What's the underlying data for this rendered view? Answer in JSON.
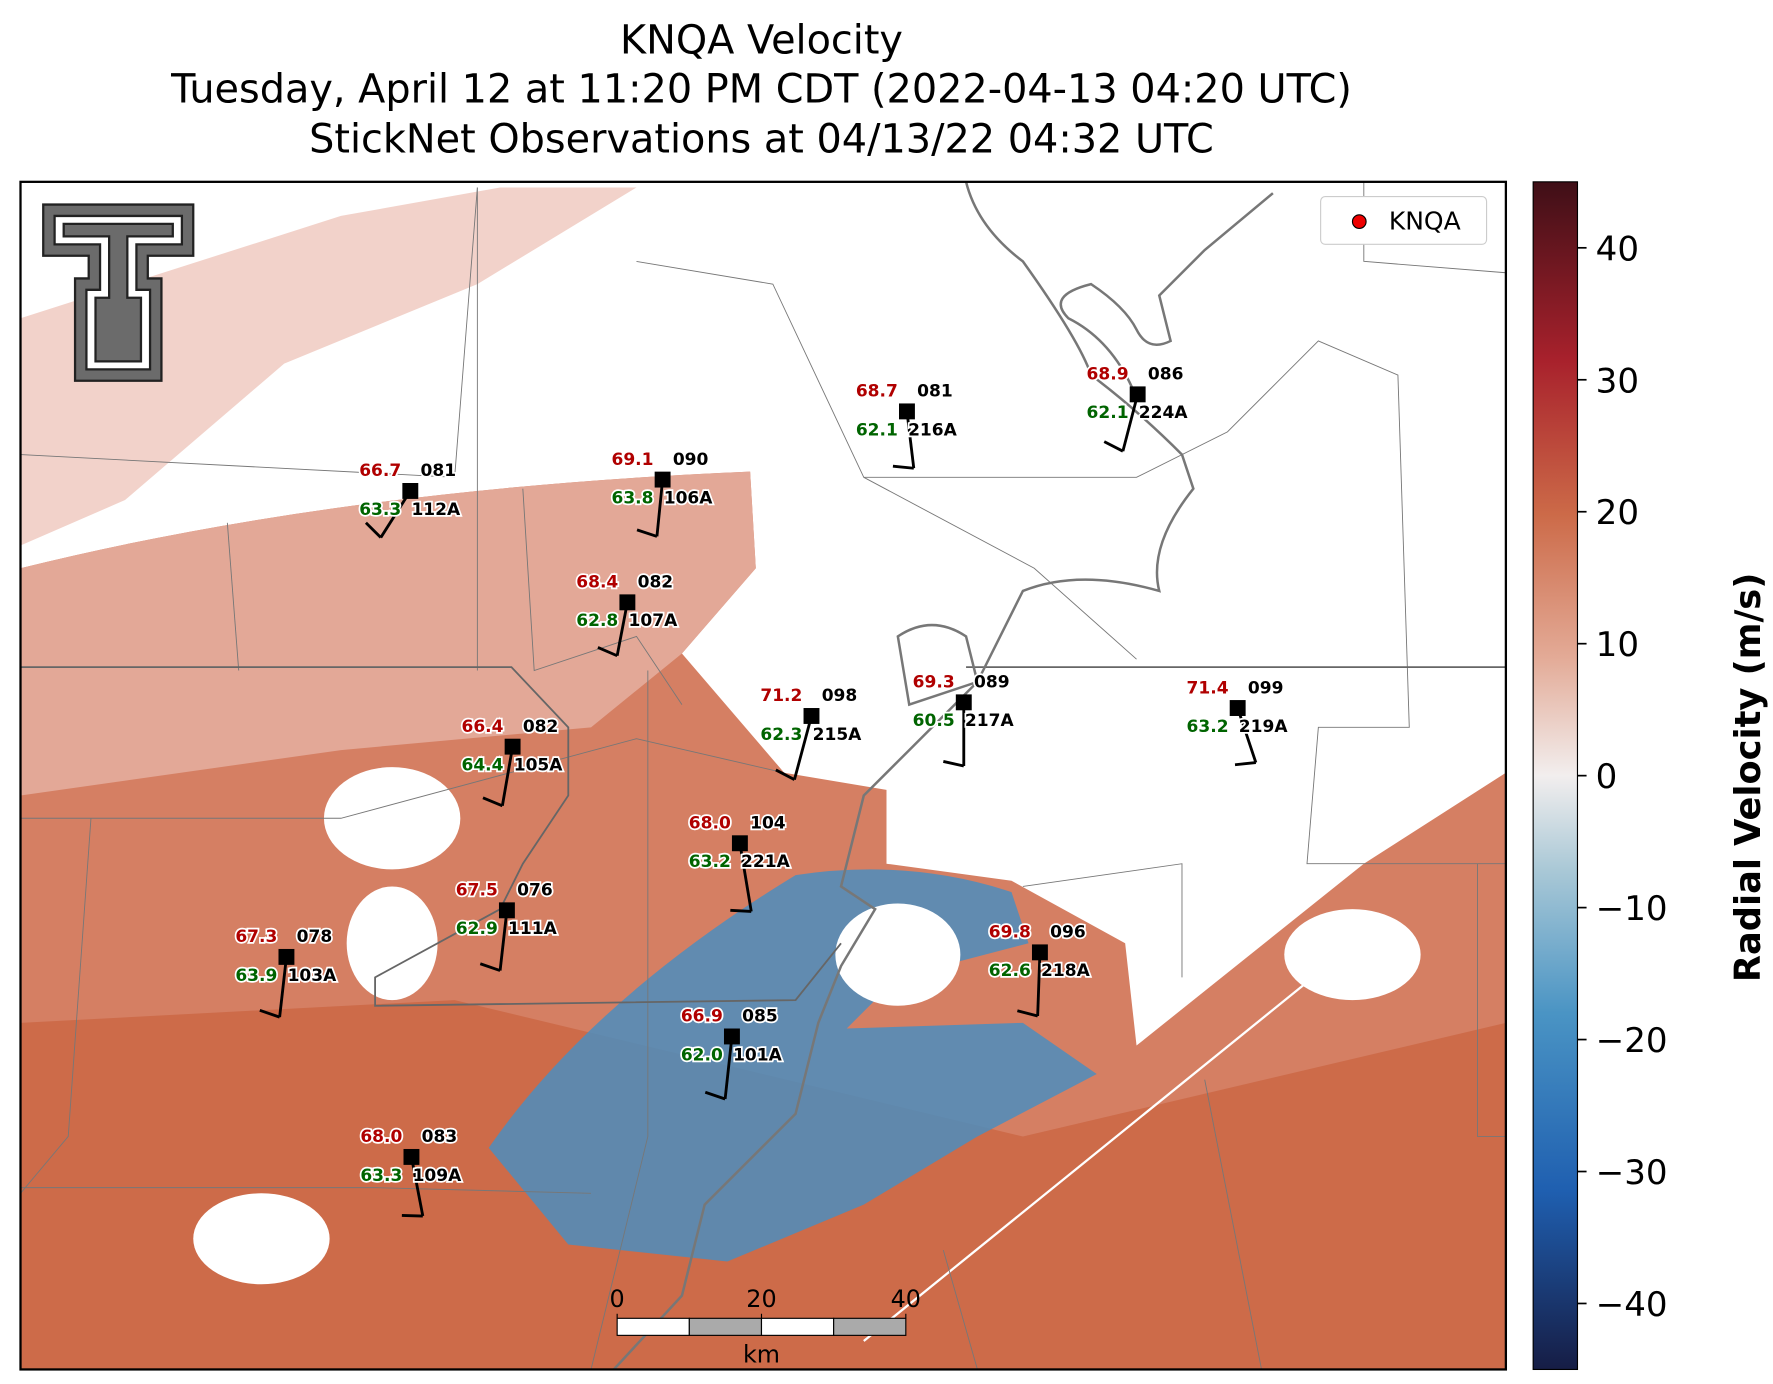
{
  "header": {
    "title": [
      "KNQA Velocity",
      "Tuesday, April 12 at 11:20 PM CDT (2022-04-13 04:20 UTC)",
      "StickNet Observations at 04/13/22 04:32 UTC"
    ]
  },
  "legend": {
    "label": "KNQA"
  },
  "colorbar": {
    "label": "Radial Velocity (m/s)",
    "lim": [
      -45,
      45
    ],
    "ticks": [
      {
        "value": -40,
        "label": "−40"
      },
      {
        "value": -30,
        "label": "−30"
      },
      {
        "value": -20,
        "label": "−20"
      },
      {
        "value": -10,
        "label": "−10"
      },
      0,
      10,
      20,
      30,
      40
    ]
  },
  "scale_bar": {
    "ticks": [
      0,
      20,
      40
    ],
    "unit": "km"
  },
  "stations": [
    {
      "id": "112A",
      "temperature": "66.7",
      "dewpoint": "63.3",
      "pressure": "081"
    },
    {
      "id": "106A",
      "temperature": "69.1",
      "dewpoint": "63.8",
      "pressure": "090"
    },
    {
      "id": "216A",
      "temperature": "68.7",
      "dewpoint": "62.1",
      "pressure": "081"
    },
    {
      "id": "224A",
      "temperature": "68.9",
      "dewpoint": "62.1",
      "pressure": "086"
    },
    {
      "id": "107A",
      "temperature": "68.4",
      "dewpoint": "62.8",
      "pressure": "082"
    },
    {
      "id": "215A",
      "temperature": "71.2",
      "dewpoint": "62.3",
      "pressure": "098"
    },
    {
      "id": "217A",
      "temperature": "69.3",
      "dewpoint": "60.5",
      "pressure": "089"
    },
    {
      "id": "219A",
      "temperature": "71.4",
      "dewpoint": "63.2",
      "pressure": "099"
    },
    {
      "id": "105A",
      "temperature": "66.4",
      "dewpoint": "64.4",
      "pressure": "082"
    },
    {
      "id": "221A",
      "temperature": "68.0",
      "dewpoint": "63.2",
      "pressure": "104"
    },
    {
      "id": "111A",
      "temperature": "67.5",
      "dewpoint": "62.9",
      "pressure": "076"
    },
    {
      "id": "103A",
      "temperature": "67.3",
      "dewpoint": "63.9",
      "pressure": "078"
    },
    {
      "id": "218A",
      "temperature": "69.8",
      "dewpoint": "62.6",
      "pressure": "096"
    },
    {
      "id": "101A",
      "temperature": "66.9",
      "dewpoint": "62.0",
      "pressure": "085"
    },
    {
      "id": "109A",
      "temperature": "68.0",
      "dewpoint": "63.3",
      "pressure": "083"
    }
  ]
}
